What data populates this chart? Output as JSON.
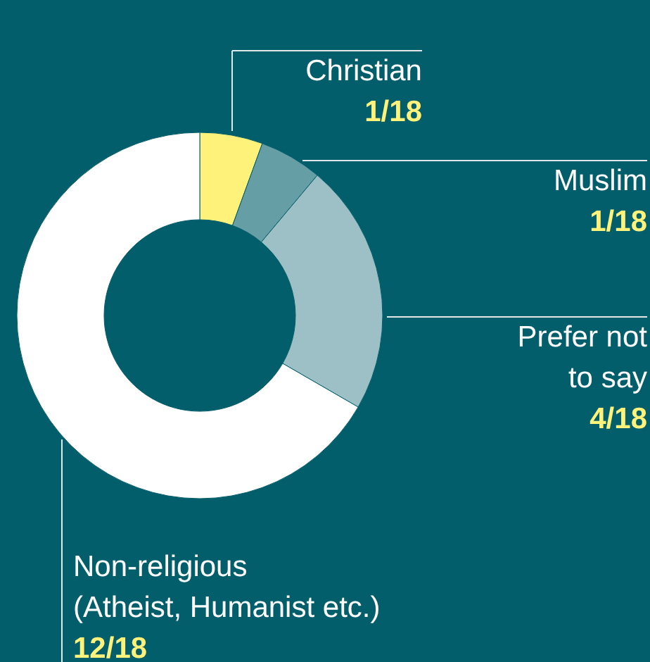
{
  "chart_data": {
    "type": "donut",
    "categories": [
      "Christian",
      "Muslim",
      "Prefer not\nto say",
      "Non-religious\n(Atheist, Humanist etc.)"
    ],
    "values": [
      1,
      1,
      4,
      12
    ],
    "value_labels": [
      "1/18",
      "1/18",
      "4/18",
      "12/18"
    ],
    "colors": [
      "#fff27a",
      "#669ea5",
      "#9dc0c6",
      "#ffffff"
    ]
  }
}
